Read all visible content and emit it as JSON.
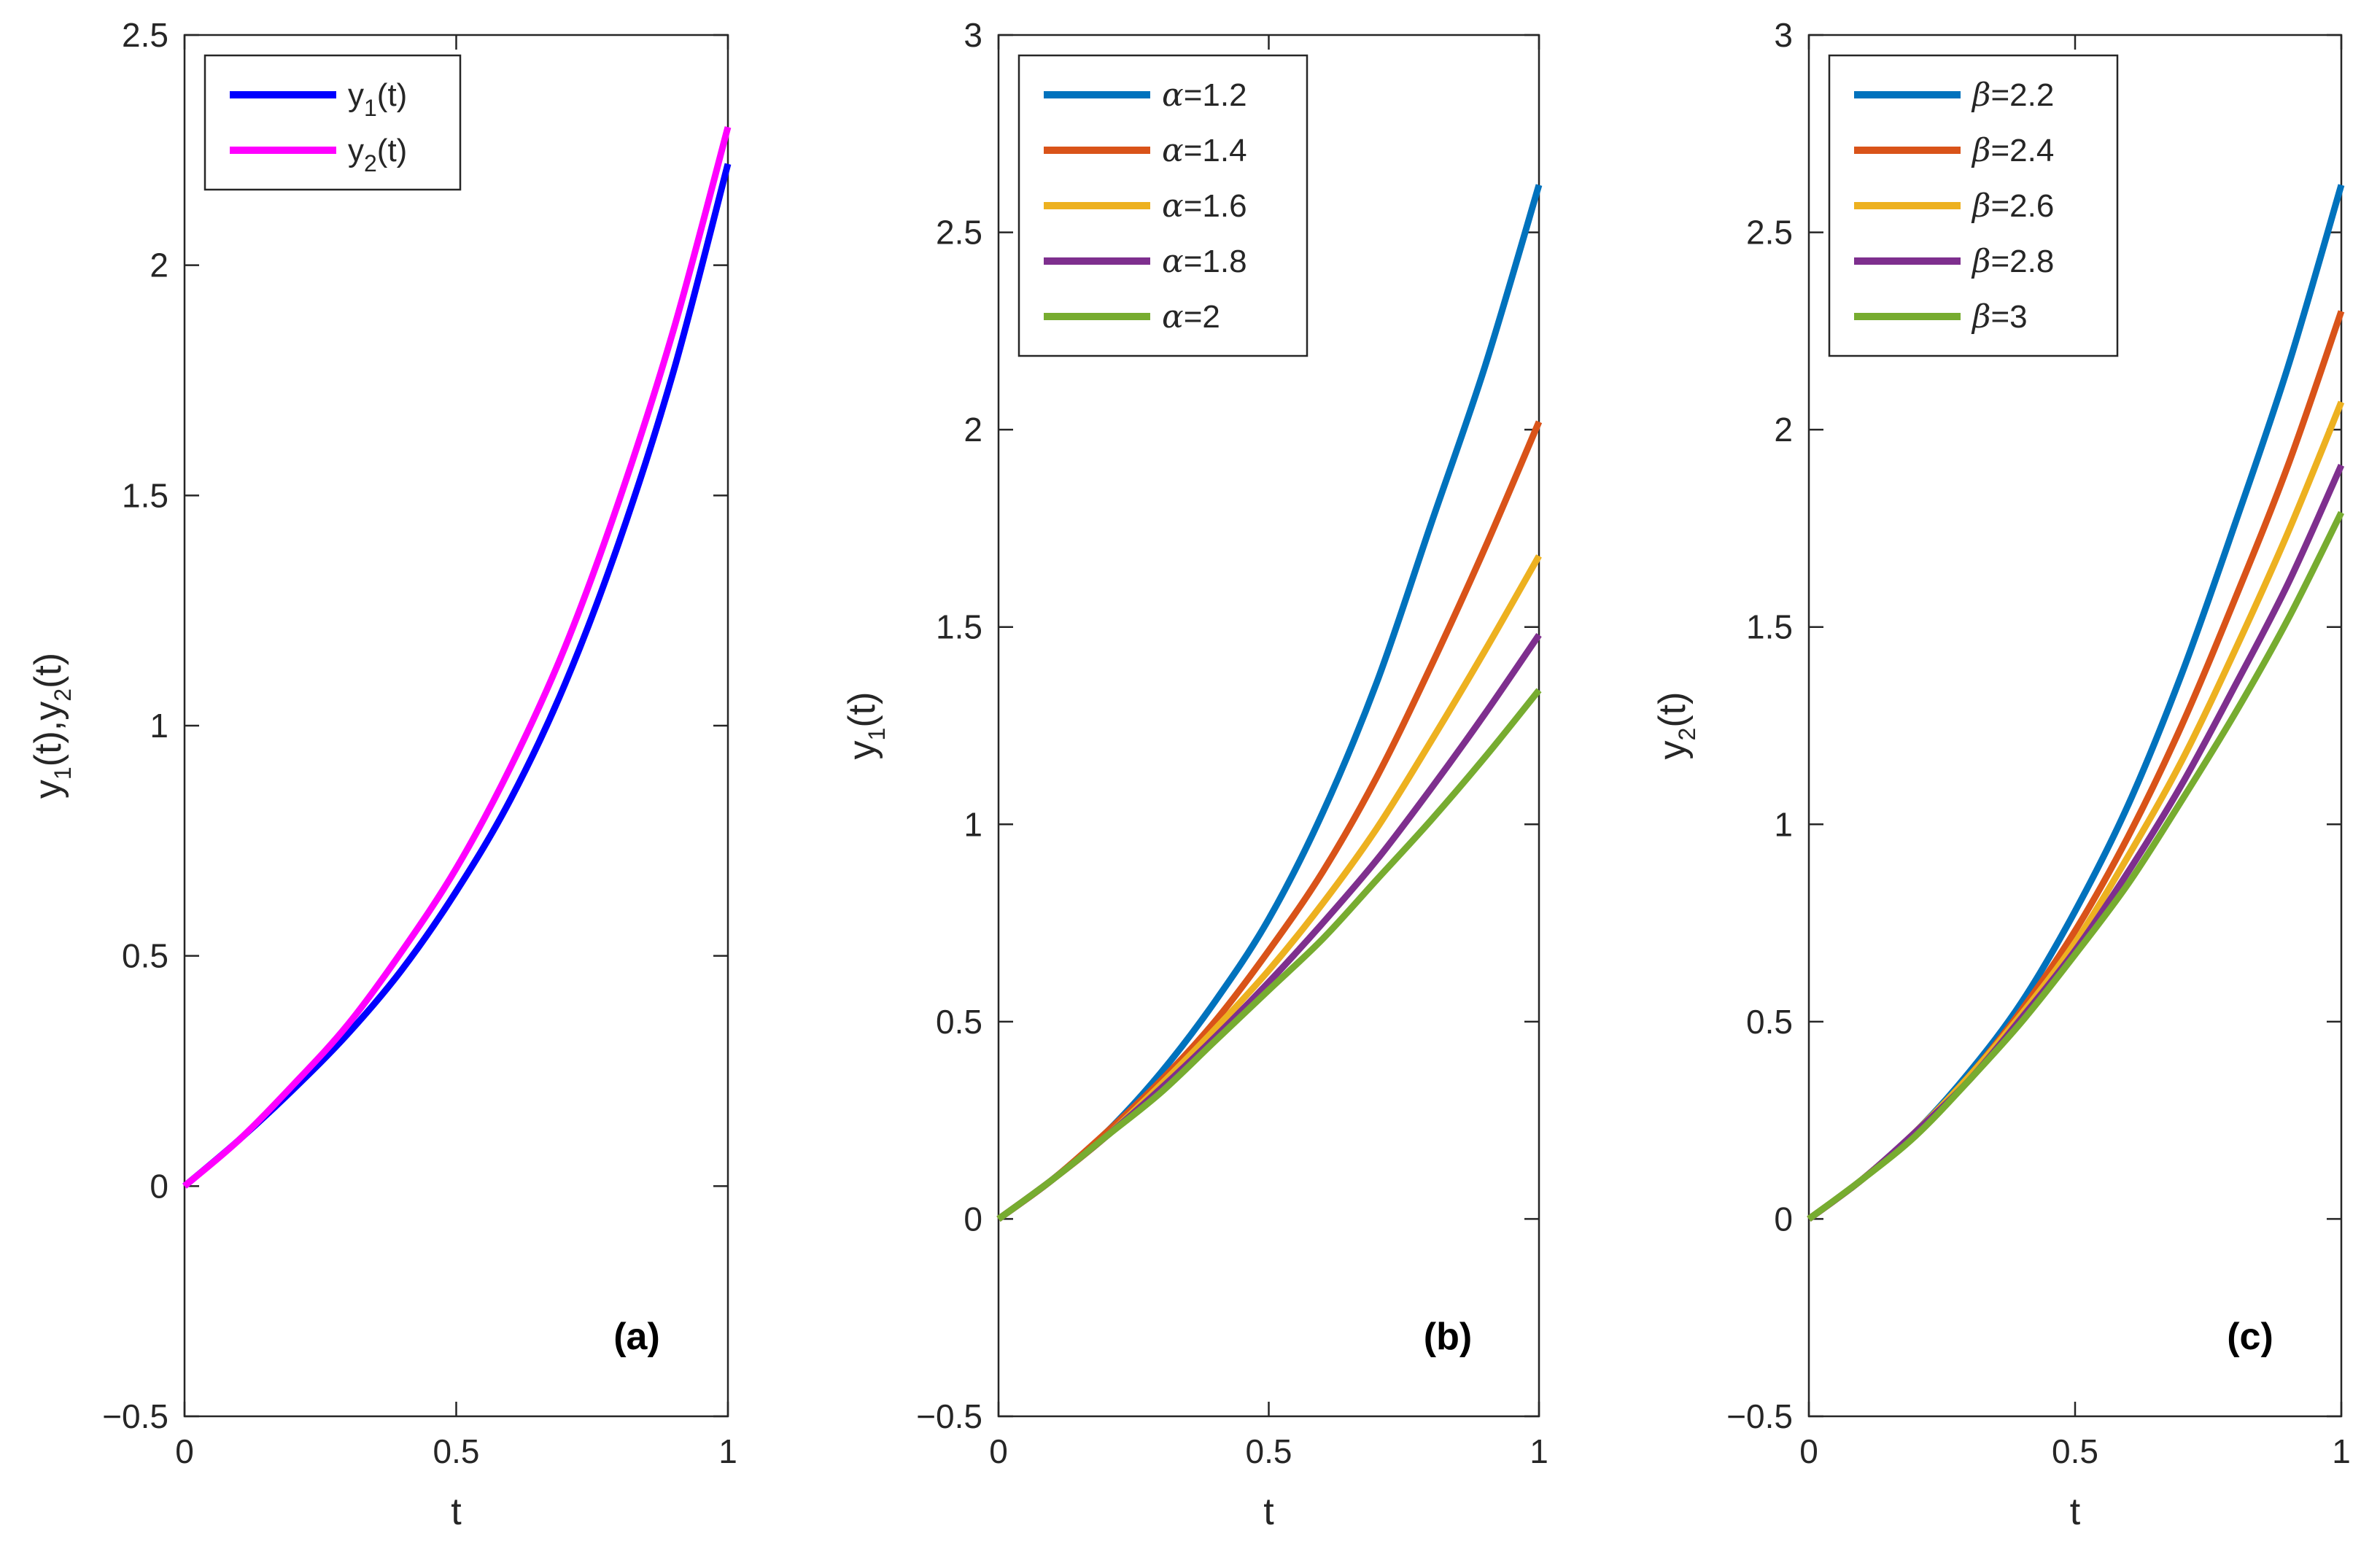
{
  "colors": {
    "y1": "#0000ff",
    "y2": "#ff00ff",
    "c1": "#0072bd",
    "c2": "#d95319",
    "c3": "#edb120",
    "c4": "#7e2f8e",
    "c5": "#77ac30"
  },
  "chart_data": [
    {
      "type": "line",
      "panel_label": "(a)",
      "xlabel": "t",
      "ylabel": "y1(t),y2(t)",
      "xlim": [
        0,
        1
      ],
      "ylim": [
        -0.5,
        2.5
      ],
      "xticks": [
        "0",
        "0.5",
        "1"
      ],
      "yticks": [
        "-0.5",
        "0",
        "0.5",
        "1",
        "1.5",
        "2",
        "2.5"
      ],
      "legend_position": "top-left",
      "x": [
        0,
        0.1,
        0.2,
        0.3,
        0.4,
        0.5,
        0.6,
        0.7,
        0.8,
        0.9,
        1.0
      ],
      "series": [
        {
          "name": "y1(t)",
          "color": "#0000ff",
          "values": [
            0,
            0.1,
            0.21,
            0.33,
            0.47,
            0.64,
            0.84,
            1.09,
            1.4,
            1.77,
            2.22
          ]
        },
        {
          "name": "y2(t)",
          "color": "#ff00ff",
          "values": [
            0,
            0.1,
            0.22,
            0.35,
            0.51,
            0.69,
            0.91,
            1.17,
            1.49,
            1.86,
            2.3
          ]
        }
      ]
    },
    {
      "type": "line",
      "panel_label": "(b)",
      "xlabel": "t",
      "ylabel": "y1(t)",
      "xlim": [
        0,
        1
      ],
      "ylim": [
        -0.5,
        3
      ],
      "xticks": [
        "0",
        "0.5",
        "1"
      ],
      "yticks": [
        "-0.5",
        "0",
        "0.5",
        "1",
        "1.5",
        "2",
        "2.5",
        "3"
      ],
      "legend_position": "top-left",
      "x": [
        0,
        0.1,
        0.2,
        0.3,
        0.4,
        0.5,
        0.6,
        0.7,
        0.8,
        0.9,
        1.0
      ],
      "series": [
        {
          "name": "α=1.2",
          "color": "#0072bd",
          "values": [
            0,
            0.1,
            0.22,
            0.37,
            0.55,
            0.76,
            1.03,
            1.36,
            1.76,
            2.16,
            2.62
          ]
        },
        {
          "name": "α=1.4",
          "color": "#d95319",
          "values": [
            0,
            0.1,
            0.22,
            0.35,
            0.5,
            0.68,
            0.88,
            1.12,
            1.4,
            1.7,
            2.02
          ]
        },
        {
          "name": "α=1.6",
          "color": "#edb120",
          "values": [
            0,
            0.1,
            0.21,
            0.34,
            0.48,
            0.63,
            0.8,
            0.99,
            1.21,
            1.44,
            1.68
          ]
        },
        {
          "name": "α=1.8",
          "color": "#7e2f8e",
          "values": [
            0,
            0.1,
            0.21,
            0.33,
            0.46,
            0.6,
            0.75,
            0.91,
            1.09,
            1.28,
            1.48
          ]
        },
        {
          "name": "α=2",
          "color": "#77ac30",
          "values": [
            0,
            0.1,
            0.21,
            0.32,
            0.45,
            0.58,
            0.71,
            0.86,
            1.01,
            1.17,
            1.34
          ]
        }
      ]
    },
    {
      "type": "line",
      "panel_label": "(c)",
      "xlabel": "t",
      "ylabel": "y2(t)",
      "xlim": [
        0,
        1
      ],
      "ylim": [
        -0.5,
        3
      ],
      "xticks": [
        "0",
        "0.5",
        "1"
      ],
      "yticks": [
        "-0.5",
        "0",
        "0.5",
        "1",
        "1.5",
        "2",
        "2.5",
        "3"
      ],
      "legend_position": "top-left",
      "x": [
        0,
        0.1,
        0.2,
        0.3,
        0.4,
        0.5,
        0.6,
        0.7,
        0.8,
        0.9,
        1.0
      ],
      "series": [
        {
          "name": "β=2.2",
          "color": "#0072bd",
          "values": [
            0,
            0.1,
            0.22,
            0.37,
            0.55,
            0.78,
            1.05,
            1.38,
            1.76,
            2.16,
            2.62
          ]
        },
        {
          "name": "β=2.4",
          "color": "#d95319",
          "values": [
            0,
            0.1,
            0.22,
            0.36,
            0.53,
            0.73,
            0.97,
            1.25,
            1.57,
            1.91,
            2.3
          ]
        },
        {
          "name": "β=2.6",
          "color": "#edb120",
          "values": [
            0,
            0.1,
            0.22,
            0.36,
            0.52,
            0.7,
            0.92,
            1.16,
            1.44,
            1.74,
            2.07
          ]
        },
        {
          "name": "β=2.8",
          "color": "#7e2f8e",
          "values": [
            0,
            0.1,
            0.22,
            0.35,
            0.51,
            0.68,
            0.88,
            1.1,
            1.35,
            1.61,
            1.91
          ]
        },
        {
          "name": "β=3",
          "color": "#77ac30",
          "values": [
            0,
            0.1,
            0.21,
            0.35,
            0.5,
            0.67,
            0.85,
            1.06,
            1.28,
            1.52,
            1.79
          ]
        }
      ]
    }
  ]
}
